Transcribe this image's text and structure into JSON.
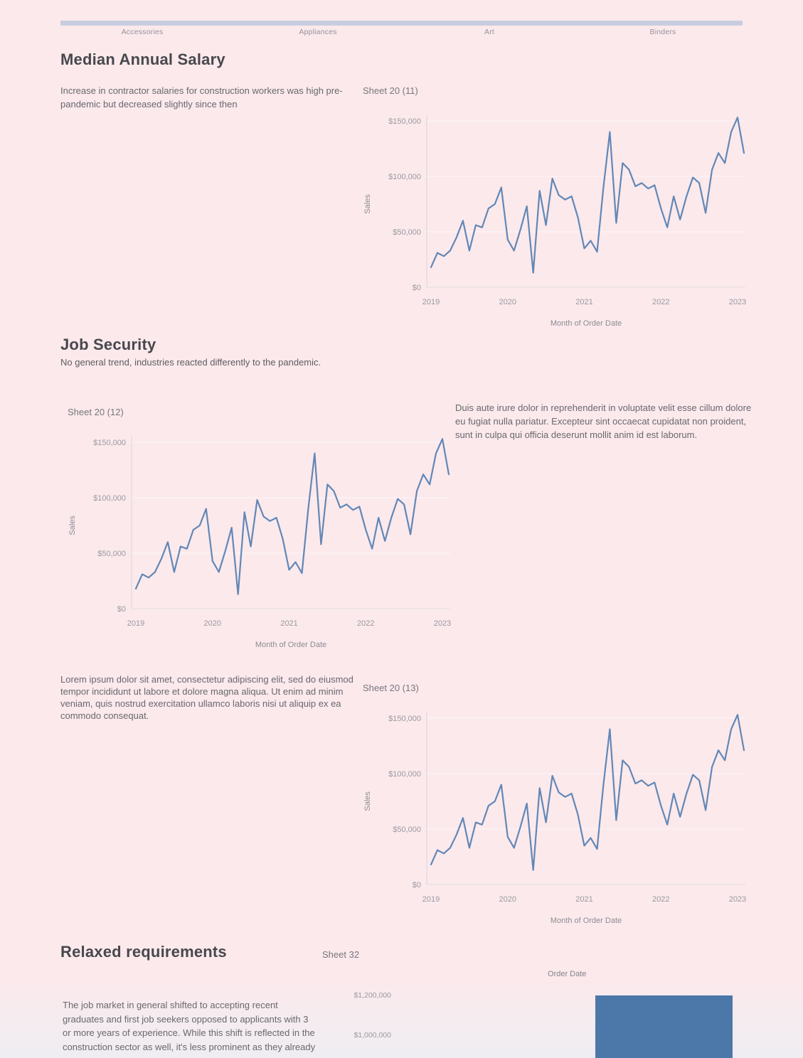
{
  "page": {
    "background_color": "#fbe9ec",
    "accent_bar_color": "#c7cdde"
  },
  "tabs": [
    {
      "label": "Accessories"
    },
    {
      "label": "Appliances"
    },
    {
      "label": "Art"
    },
    {
      "label": "Binders"
    }
  ],
  "sections": {
    "salary": {
      "title": "Median Annual Salary",
      "body": "Increase in contractor salaries for construction workers was high pre-pandemic but decreased slightly since then"
    },
    "job_security": {
      "title": "Job Security",
      "subtitle": "No general trend, industries reacted differently to the pandemic.",
      "body_right": "Duis aute irure dolor in reprehenderit in voluptate velit esse cillum dolore eu fugiat nulla pariatur. Excepteur sint occaecat cupidatat non proident, sunt in culpa qui officia deserunt mollit anim id est laborum.",
      "body_left": "Lorem ipsum dolor sit amet, consectetur adipiscing elit, sed do eiusmod tempor incididunt ut labore et dolore magna aliqua. Ut enim ad minim veniam, quis nostrud exercitation ullamco laboris nisi ut aliquip ex ea commodo consequat."
    },
    "relaxed": {
      "title": "Relaxed requirements",
      "body": "The job market in general shifted to accepting recent graduates and first job seekers opposed to applicants with 3 or more years of experience. While this shift is reflected in the construction sector as well, it's less prominent as they already"
    }
  },
  "chart_data": [
    {
      "id": "sheet20-11",
      "type": "line",
      "title": "Sheet 20 (11)",
      "xlabel": "Month of Order Date",
      "ylabel": "Sales",
      "line_color": "#6287b6",
      "ylim": [
        0,
        160000
      ],
      "x_start": "2019-01",
      "x_interval": "month",
      "y_ticks": [
        {
          "label": "$0",
          "value": 0
        },
        {
          "label": "$50,000",
          "value": 50000
        },
        {
          "label": "$100,000",
          "value": 100000
        },
        {
          "label": "$150,000",
          "value": 150000
        }
      ],
      "x_ticks": [
        {
          "label": "2019",
          "month_index": 0
        },
        {
          "label": "2020",
          "month_index": 12
        },
        {
          "label": "2021",
          "month_index": 24
        },
        {
          "label": "2022",
          "month_index": 36
        },
        {
          "label": "2023",
          "month_index": 48
        }
      ],
      "values": [
        18000,
        31000,
        28000,
        33000,
        45000,
        60000,
        33000,
        56000,
        54000,
        71000,
        75000,
        90000,
        43000,
        33000,
        52000,
        73000,
        13000,
        87000,
        56000,
        98000,
        83000,
        79000,
        82000,
        63000,
        35000,
        42000,
        32000,
        90000,
        140000,
        58000,
        112000,
        106000,
        91000,
        94000,
        89000,
        92000,
        71000,
        54000,
        82000,
        61000,
        82000,
        99000,
        94000,
        67000,
        106000,
        121000,
        112000,
        140000,
        153000,
        121000
      ]
    },
    {
      "id": "sheet20-12",
      "type": "line",
      "title": "Sheet 20 (12)",
      "xlabel": "Month of Order Date",
      "ylabel": "Sales",
      "line_color": "#6287b6",
      "ylim": [
        0,
        160000
      ],
      "x_start": "2019-01",
      "x_interval": "month",
      "y_ticks": [
        {
          "label": "$0",
          "value": 0
        },
        {
          "label": "$50,000",
          "value": 50000
        },
        {
          "label": "$100,000",
          "value": 100000
        },
        {
          "label": "$150,000",
          "value": 150000
        }
      ],
      "x_ticks": [
        {
          "label": "2019",
          "month_index": 0
        },
        {
          "label": "2020",
          "month_index": 12
        },
        {
          "label": "2021",
          "month_index": 24
        },
        {
          "label": "2022",
          "month_index": 36
        },
        {
          "label": "2023",
          "month_index": 48
        }
      ],
      "values": [
        18000,
        31000,
        28000,
        33000,
        45000,
        60000,
        33000,
        56000,
        54000,
        71000,
        75000,
        90000,
        43000,
        33000,
        52000,
        73000,
        13000,
        87000,
        56000,
        98000,
        83000,
        79000,
        82000,
        63000,
        35000,
        42000,
        32000,
        90000,
        140000,
        58000,
        112000,
        106000,
        91000,
        94000,
        89000,
        92000,
        71000,
        54000,
        82000,
        61000,
        82000,
        99000,
        94000,
        67000,
        106000,
        121000,
        112000,
        140000,
        153000,
        121000
      ]
    },
    {
      "id": "sheet20-13",
      "type": "line",
      "title": "Sheet 20 (13)",
      "xlabel": "Month of Order Date",
      "ylabel": "Sales",
      "line_color": "#6287b6",
      "ylim": [
        0,
        160000
      ],
      "x_start": "2019-01",
      "x_interval": "month",
      "y_ticks": [
        {
          "label": "$0",
          "value": 0
        },
        {
          "label": "$50,000",
          "value": 50000
        },
        {
          "label": "$100,000",
          "value": 100000
        },
        {
          "label": "$150,000",
          "value": 150000
        }
      ],
      "x_ticks": [
        {
          "label": "2019",
          "month_index": 0
        },
        {
          "label": "2020",
          "month_index": 12
        },
        {
          "label": "2021",
          "month_index": 24
        },
        {
          "label": "2022",
          "month_index": 36
        },
        {
          "label": "2023",
          "month_index": 48
        }
      ],
      "values": [
        18000,
        31000,
        28000,
        33000,
        45000,
        60000,
        33000,
        56000,
        54000,
        71000,
        75000,
        90000,
        43000,
        33000,
        52000,
        73000,
        13000,
        87000,
        56000,
        98000,
        83000,
        79000,
        82000,
        63000,
        35000,
        42000,
        32000,
        90000,
        140000,
        58000,
        112000,
        106000,
        91000,
        94000,
        89000,
        92000,
        71000,
        54000,
        82000,
        61000,
        82000,
        99000,
        94000,
        67000,
        106000,
        121000,
        112000,
        140000,
        153000,
        121000
      ]
    },
    {
      "id": "sheet32",
      "type": "bar",
      "title": "Sheet 32",
      "legend_title": "Order Date",
      "bar_color": "#4b78a8",
      "y_ticks": [
        {
          "label": "$1,200,000",
          "value": 1200000
        },
        {
          "label": "$1,000,000",
          "value": 1000000
        }
      ],
      "bars": [
        {
          "value": 1200000
        }
      ]
    }
  ]
}
